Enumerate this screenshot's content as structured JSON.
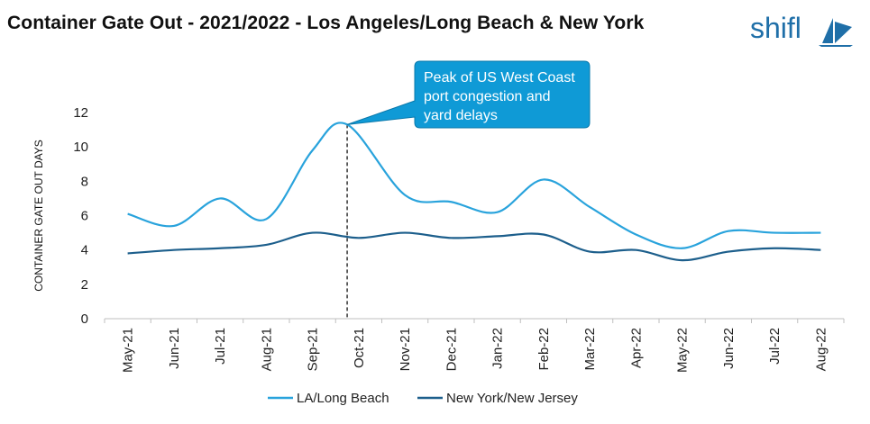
{
  "header": {
    "title": "Container Gate Out - 2021/2022 - Los Angeles/Long Beach & New York",
    "logo_text": "shifl",
    "brand_color": "#1f6fa8"
  },
  "chart_data": {
    "type": "line",
    "title": "Container Gate Out - 2021/2022 - Los Angeles/Long Beach & New York",
    "ylabel": "CONTAINER GATE OUT DAYS",
    "xlabel": "",
    "categories": [
      "May-21",
      "Jun-21",
      "Jul-21",
      "Aug-21",
      "Sep-21",
      "Oct-21",
      "Nov-21",
      "Dec-21",
      "Jan-22",
      "Feb-22",
      "Mar-22",
      "Apr-22",
      "May-22",
      "Jun-22",
      "Jul-22",
      "Aug-22"
    ],
    "ylim": [
      0,
      12
    ],
    "yticks": [
      0,
      2,
      4,
      6,
      8,
      10,
      12
    ],
    "grid": false,
    "legend_position": "bottom",
    "series": [
      {
        "name": "LA/Long Beach",
        "color": "#29a3dc",
        "x": [
          0,
          1,
          2,
          3,
          4,
          4.75,
          6,
          7,
          8,
          9,
          10,
          11,
          12,
          13,
          14,
          15
        ],
        "values": [
          6.1,
          5.4,
          7.0,
          5.8,
          9.8,
          11.3,
          7.2,
          6.8,
          6.2,
          8.1,
          6.5,
          4.9,
          4.1,
          5.1,
          5.0,
          5.0
        ]
      },
      {
        "name": "New York/New Jersey",
        "color": "#1d5f8c",
        "values": [
          3.8,
          4.0,
          4.1,
          4.3,
          5.0,
          4.7,
          5.0,
          4.7,
          4.8,
          4.9,
          3.9,
          4.0,
          3.4,
          3.9,
          4.1,
          4.0
        ]
      }
    ],
    "annotation": {
      "text_lines": [
        "Peak of US West Coast",
        "port congestion and",
        "yard delays"
      ],
      "x": 4.75,
      "y": 11.3,
      "fill": "#0f9ad6"
    }
  }
}
